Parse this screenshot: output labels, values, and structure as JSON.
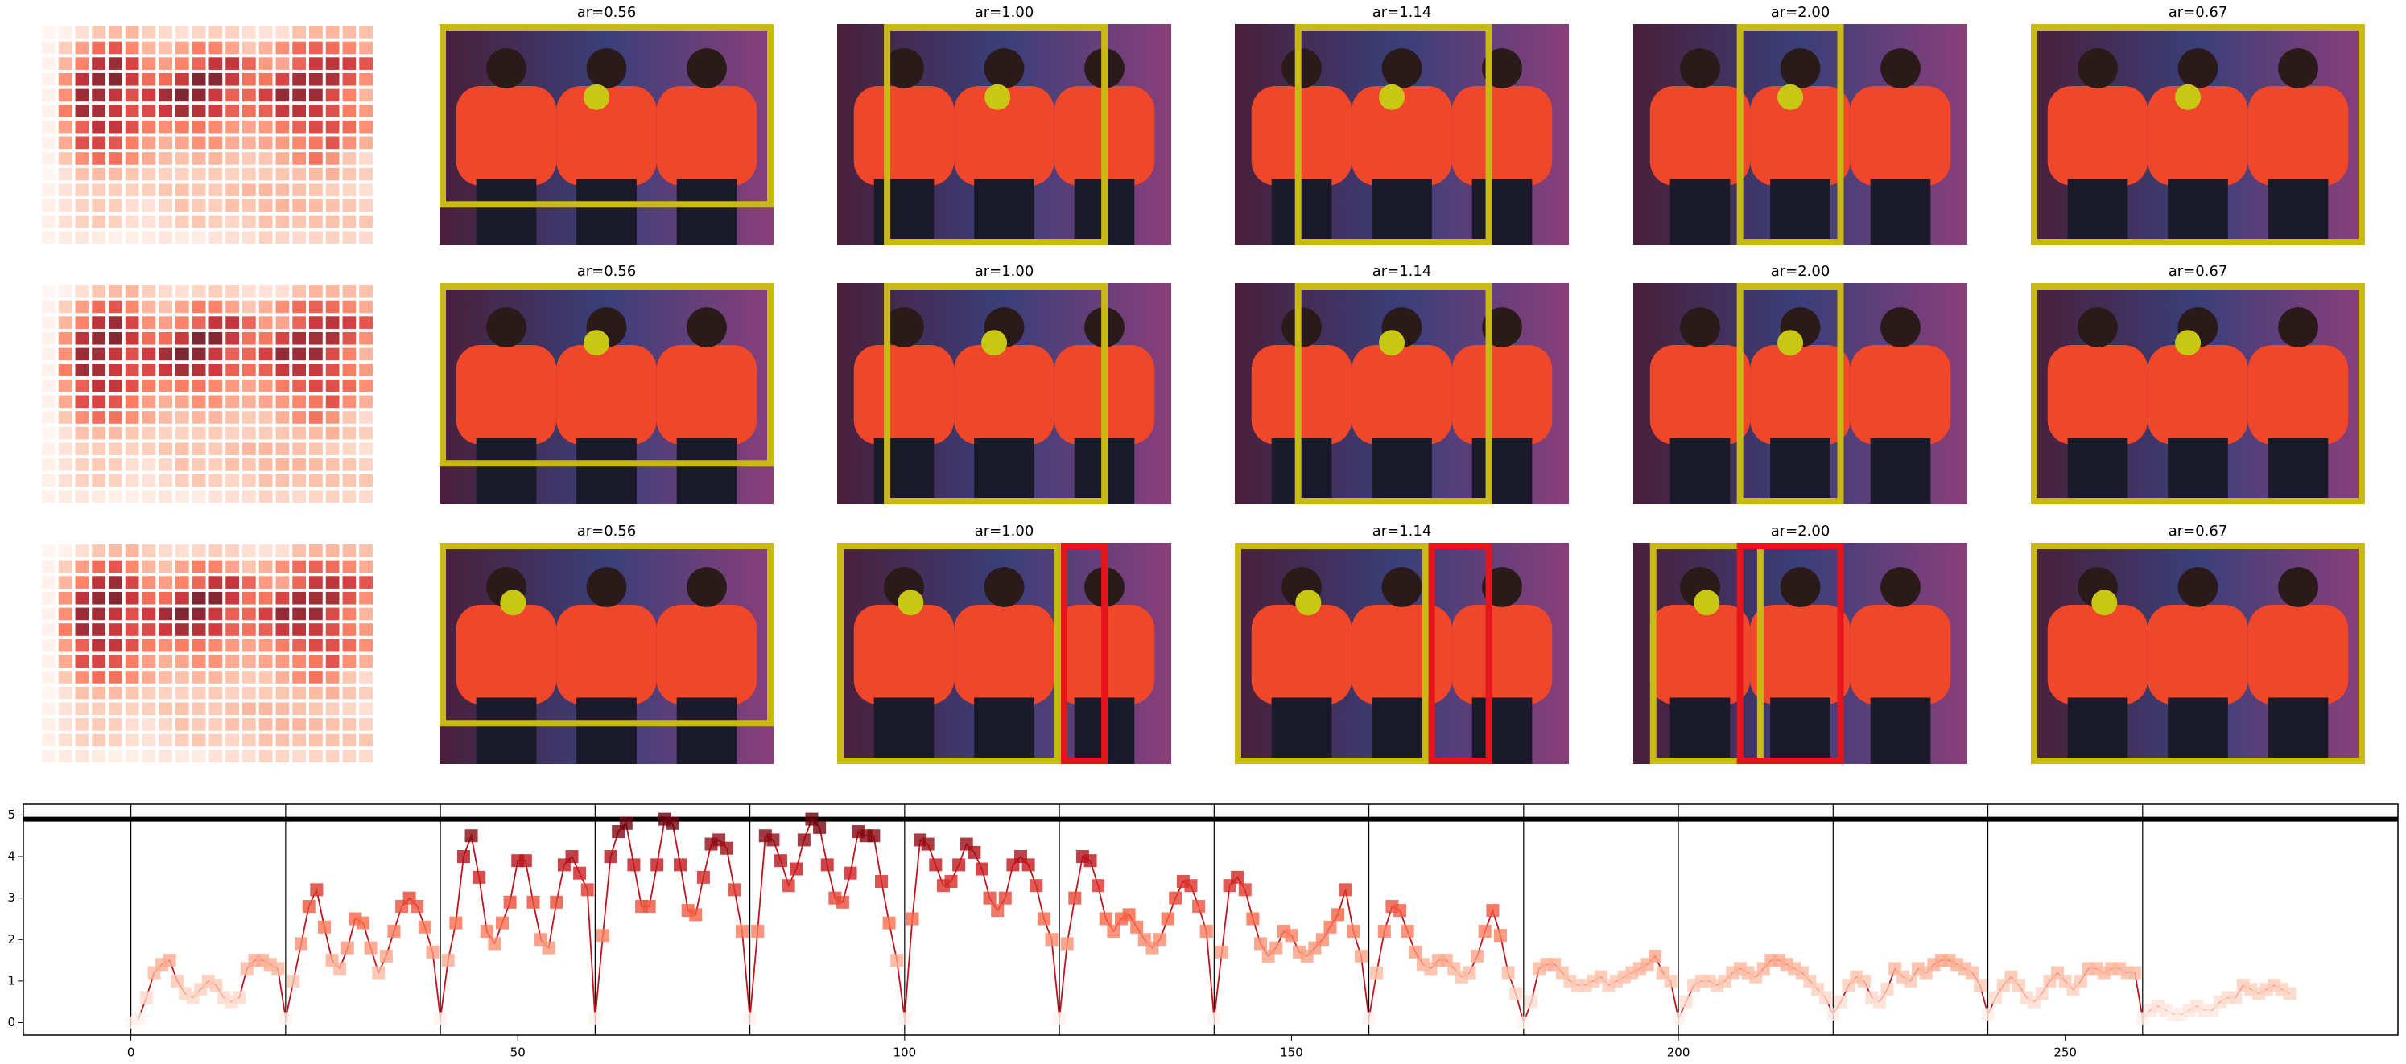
{
  "panel_titles": [
    "ar=0.56",
    "ar=1.00",
    "ar=1.14",
    "ar=2.00",
    "ar=0.67"
  ],
  "chart_data": {
    "type": "line",
    "color": "#c0141c",
    "colormap": "Reds",
    "xlim": [
      -13.9,
      293
    ],
    "ylim": [
      -0.3,
      5.26
    ],
    "xticks": [
      0,
      50,
      100,
      150,
      200,
      250
    ],
    "yticks": [
      0,
      1,
      2,
      3,
      4,
      5
    ],
    "vlines": [
      0,
      20,
      40,
      60,
      80,
      100,
      120,
      140,
      160,
      180,
      200,
      220,
      240,
      260
    ],
    "hline": 4.9,
    "values": [
      0.0,
      0.1,
      0.6,
      1.2,
      1.4,
      1.5,
      1.0,
      0.7,
      0.6,
      0.8,
      1.0,
      0.9,
      0.6,
      0.5,
      0.6,
      1.3,
      1.5,
      1.5,
      1.4,
      1.3,
      0.1,
      1.0,
      1.9,
      2.8,
      3.2,
      2.3,
      1.5,
      1.3,
      1.8,
      2.5,
      2.4,
      1.8,
      1.2,
      1.6,
      2.2,
      2.8,
      3.0,
      2.8,
      2.3,
      1.7,
      0.1,
      1.5,
      2.4,
      4.0,
      4.5,
      3.5,
      2.2,
      1.9,
      2.4,
      2.9,
      3.9,
      3.9,
      2.9,
      2.0,
      1.8,
      2.9,
      3.8,
      4.0,
      3.6,
      3.2,
      0.1,
      2.1,
      4.0,
      4.6,
      4.8,
      3.8,
      2.8,
      2.8,
      3.8,
      4.9,
      4.8,
      3.8,
      2.7,
      2.6,
      3.5,
      4.3,
      4.4,
      4.2,
      3.2,
      2.2,
      0.1,
      2.2,
      4.5,
      4.4,
      3.9,
      3.3,
      3.7,
      4.4,
      4.9,
      4.7,
      3.8,
      3.0,
      2.9,
      3.6,
      4.6,
      4.5,
      4.5,
      3.4,
      2.4,
      1.5,
      0.1,
      2.5,
      4.4,
      4.3,
      3.8,
      3.3,
      3.4,
      3.8,
      4.3,
      4.1,
      3.7,
      3.0,
      2.7,
      3.0,
      3.8,
      4.0,
      3.8,
      3.3,
      2.5,
      2.0,
      0.1,
      1.9,
      3.0,
      4.0,
      3.9,
      3.3,
      2.5,
      2.2,
      2.5,
      2.6,
      2.3,
      2.0,
      1.8,
      2.0,
      2.5,
      3.0,
      3.4,
      3.3,
      2.8,
      2.2,
      0.1,
      1.7,
      3.3,
      3.5,
      3.2,
      2.5,
      1.9,
      1.6,
      1.8,
      2.2,
      2.1,
      1.7,
      1.6,
      1.8,
      2.0,
      2.3,
      2.6,
      3.2,
      2.2,
      1.6,
      0.1,
      1.2,
      2.2,
      2.8,
      2.7,
      2.2,
      1.7,
      1.4,
      1.3,
      1.5,
      1.5,
      1.3,
      1.1,
      1.2,
      1.6,
      2.2,
      2.7,
      2.1,
      1.2,
      0.7,
      0.0,
      0.5,
      1.3,
      1.4,
      1.4,
      1.2,
      1.0,
      0.9,
      0.9,
      1.0,
      1.1,
      0.9,
      1.0,
      1.1,
      1.2,
      1.3,
      1.4,
      1.6,
      1.2,
      1.0,
      0.1,
      0.5,
      0.9,
      1.0,
      1.0,
      0.9,
      1.0,
      1.2,
      1.3,
      1.2,
      1.1,
      1.3,
      1.5,
      1.5,
      1.4,
      1.3,
      1.2,
      1.0,
      0.8,
      0.6,
      0.2,
      0.5,
      0.9,
      1.1,
      1.0,
      0.6,
      0.5,
      0.8,
      1.3,
      1.1,
      1.0,
      1.3,
      1.2,
      1.4,
      1.5,
      1.5,
      1.4,
      1.3,
      1.2,
      0.9,
      0.2,
      0.6,
      0.9,
      1.1,
      0.9,
      0.6,
      0.5,
      0.7,
      1.0,
      1.2,
      1.0,
      0.8,
      1.0,
      1.3,
      1.3,
      1.2,
      1.3,
      1.3,
      1.2,
      1.2,
      0.1,
      0.3,
      0.4,
      0.3,
      0.2,
      0.2,
      0.3,
      0.4,
      0.3,
      0.3,
      0.5,
      0.6,
      0.6,
      0.9,
      0.8,
      0.7,
      0.8,
      0.9,
      0.8,
      0.7
    ]
  }
}
